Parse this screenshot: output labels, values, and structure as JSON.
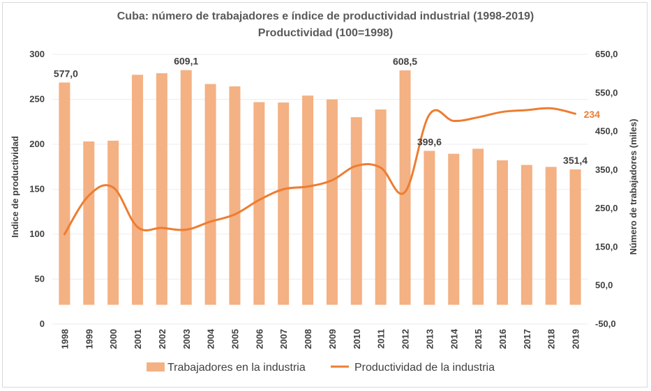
{
  "chart_data": {
    "type": "bar+line",
    "title": "Cuba: número de trabajadores e índice de productividad industrial (1998-2019)",
    "subtitle": "Productividad (100=1998)",
    "categories": [
      "1998",
      "1999",
      "2000",
      "2001",
      "2002",
      "2003",
      "2004",
      "2005",
      "2006",
      "2007",
      "2008",
      "2009",
      "2010",
      "2011",
      "2012",
      "2013",
      "2014",
      "2015",
      "2016",
      "2017",
      "2018",
      "2019"
    ],
    "series": [
      {
        "name": "Trabajadores en la industria",
        "type": "bar",
        "axis": "right",
        "color": "#f4b183",
        "values": [
          577.0,
          424,
          426,
          597,
          601,
          609.1,
          573,
          567,
          526,
          525,
          543,
          533,
          487,
          507,
          608.5,
          399.6,
          392,
          405,
          375,
          363,
          358,
          351.4
        ]
      },
      {
        "name": "Productividad de la industria",
        "type": "line",
        "axis": "left",
        "color": "#ed7d31",
        "values": [
          100,
          143,
          152,
          108,
          107,
          105,
          114,
          122,
          138,
          150,
          153,
          160,
          176,
          174,
          147,
          233,
          226,
          230,
          236,
          238,
          240,
          234
        ]
      }
    ],
    "ylabel": "Indice de productividad",
    "ylim": [
      0,
      300
    ],
    "yticks": [
      "0",
      "50",
      "100",
      "150",
      "200",
      "250",
      "300"
    ],
    "y2label": "Número de trabajadores (miles)",
    "y2lim": [
      -50,
      650
    ],
    "y2ticks": [
      "-50,0",
      "50,0",
      "150,0",
      "250,0",
      "350,0",
      "450,0",
      "550,0",
      "650,0"
    ],
    "data_labels": [
      {
        "index": 0,
        "series": 0,
        "text": "577,0"
      },
      {
        "index": 5,
        "series": 0,
        "text": "609,1"
      },
      {
        "index": 14,
        "series": 0,
        "text": "608,5"
      },
      {
        "index": 15,
        "series": 0,
        "text": "399,6"
      },
      {
        "index": 21,
        "series": 0,
        "text": "351,4"
      },
      {
        "index": 21,
        "series": 1,
        "text": "234"
      }
    ],
    "legend_position": "bottom",
    "grid": "horizontal"
  }
}
